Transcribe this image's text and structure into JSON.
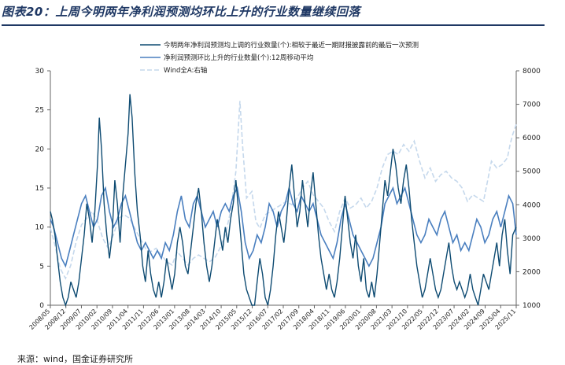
{
  "header": {
    "title": "图表20：上周今明两年净利润预测均环比上升的行业数量继续回落"
  },
  "footer": {
    "source": "来源：wind，国金证券研究所"
  },
  "colors": {
    "title": "#1f3864",
    "series_dark": "#0e4b72",
    "series_mid": "#4a7fbf",
    "series_light": "#c5d8ec"
  },
  "chart_data": {
    "type": "line",
    "title": "",
    "series": [
      {
        "name": "今明两年净利润预测均上调的行业数量(个):相较于最近一期财报披露前的最后一次预测",
        "axis": "left",
        "style": "solid-dark"
      },
      {
        "name": "净利润预测环比上升的行业数量(个):12周移动平均",
        "axis": "left",
        "style": "solid-mid"
      },
      {
        "name": "Wind全A:右轴",
        "axis": "right",
        "style": "dashed-light"
      }
    ],
    "y_left": {
      "min": 0,
      "max": 30,
      "ticks": [
        0,
        5,
        10,
        15,
        20,
        25,
        30
      ]
    },
    "y_right": {
      "min": 1000,
      "max": 8000,
      "ticks": [
        1000,
        2000,
        3000,
        4000,
        5000,
        6000,
        7000,
        8000
      ]
    },
    "x_ticks": [
      "2008/05",
      "2008/12",
      "2009/07",
      "2010/02",
      "2010/09",
      "2011/04",
      "2011/11",
      "2012/06",
      "2013/01",
      "2013/08",
      "2014/03",
      "2014/10",
      "2015/05",
      "2015/12",
      "2016/07",
      "2017/02",
      "2017/09",
      "2018/04",
      "2018/11",
      "2019/06",
      "2020/01",
      "2020/08",
      "2021/03",
      "2021/10",
      "2022/05",
      "2022/12",
      "2023/07",
      "2024/02",
      "2024/09",
      "2025/04",
      "2025/11"
    ],
    "x_range": [
      2008.33,
      2025.83
    ],
    "dark_points": [
      [
        2008.33,
        12
      ],
      [
        2008.4,
        11
      ],
      [
        2008.5,
        9
      ],
      [
        2008.6,
        6
      ],
      [
        2008.7,
        3
      ],
      [
        2008.8,
        1
      ],
      [
        2008.9,
        0
      ],
      [
        2009.0,
        1
      ],
      [
        2009.1,
        3
      ],
      [
        2009.2,
        2
      ],
      [
        2009.3,
        1
      ],
      [
        2009.4,
        3
      ],
      [
        2009.5,
        6
      ],
      [
        2009.6,
        9
      ],
      [
        2009.7,
        13
      ],
      [
        2009.8,
        11
      ],
      [
        2009.9,
        8
      ],
      [
        2010.0,
        12
      ],
      [
        2010.1,
        18
      ],
      [
        2010.17,
        24
      ],
      [
        2010.25,
        20
      ],
      [
        2010.35,
        13
      ],
      [
        2010.45,
        9
      ],
      [
        2010.55,
        6
      ],
      [
        2010.65,
        9
      ],
      [
        2010.75,
        16
      ],
      [
        2010.85,
        13
      ],
      [
        2010.95,
        8
      ],
      [
        2011.05,
        14
      ],
      [
        2011.15,
        18
      ],
      [
        2011.25,
        22
      ],
      [
        2011.32,
        27
      ],
      [
        2011.4,
        24
      ],
      [
        2011.5,
        17
      ],
      [
        2011.6,
        12
      ],
      [
        2011.7,
        9
      ],
      [
        2011.8,
        5
      ],
      [
        2011.9,
        3
      ],
      [
        2012.0,
        7
      ],
      [
        2012.1,
        4
      ],
      [
        2012.2,
        2
      ],
      [
        2012.3,
        1
      ],
      [
        2012.4,
        3
      ],
      [
        2012.5,
        1
      ],
      [
        2012.6,
        3
      ],
      [
        2012.7,
        6
      ],
      [
        2012.8,
        4
      ],
      [
        2012.9,
        2
      ],
      [
        2013.0,
        4
      ],
      [
        2013.1,
        8
      ],
      [
        2013.2,
        10
      ],
      [
        2013.3,
        8
      ],
      [
        2013.4,
        5
      ],
      [
        2013.5,
        4
      ],
      [
        2013.6,
        7
      ],
      [
        2013.7,
        10
      ],
      [
        2013.8,
        13
      ],
      [
        2013.9,
        15
      ],
      [
        2014.0,
        12
      ],
      [
        2014.1,
        8
      ],
      [
        2014.2,
        5
      ],
      [
        2014.3,
        3
      ],
      [
        2014.4,
        5
      ],
      [
        2014.5,
        8
      ],
      [
        2014.6,
        11
      ],
      [
        2014.7,
        9
      ],
      [
        2014.8,
        7
      ],
      [
        2014.9,
        10
      ],
      [
        2015.0,
        8
      ],
      [
        2015.1,
        11
      ],
      [
        2015.2,
        13
      ],
      [
        2015.3,
        16
      ],
      [
        2015.4,
        12
      ],
      [
        2015.5,
        8
      ],
      [
        2015.6,
        4
      ],
      [
        2015.7,
        2
      ],
      [
        2015.8,
        1
      ],
      [
        2015.9,
        0
      ],
      [
        2016.0,
        0
      ],
      [
        2016.1,
        3
      ],
      [
        2016.2,
        6
      ],
      [
        2016.3,
        4
      ],
      [
        2016.4,
        1
      ],
      [
        2016.5,
        0
      ],
      [
        2016.6,
        2
      ],
      [
        2016.7,
        5
      ],
      [
        2016.8,
        9
      ],
      [
        2016.9,
        12
      ],
      [
        2017.0,
        10
      ],
      [
        2017.1,
        8
      ],
      [
        2017.2,
        11
      ],
      [
        2017.3,
        15
      ],
      [
        2017.4,
        18
      ],
      [
        2017.5,
        14
      ],
      [
        2017.6,
        10
      ],
      [
        2017.7,
        12
      ],
      [
        2017.8,
        16
      ],
      [
        2017.9,
        13
      ],
      [
        2018.0,
        10
      ],
      [
        2018.1,
        14
      ],
      [
        2018.2,
        17
      ],
      [
        2018.3,
        13
      ],
      [
        2018.4,
        9
      ],
      [
        2018.5,
        6
      ],
      [
        2018.6,
        4
      ],
      [
        2018.7,
        2
      ],
      [
        2018.8,
        4
      ],
      [
        2018.9,
        2
      ],
      [
        2019.0,
        1
      ],
      [
        2019.1,
        3
      ],
      [
        2019.2,
        6
      ],
      [
        2019.3,
        10
      ],
      [
        2019.4,
        14
      ],
      [
        2019.5,
        11
      ],
      [
        2019.6,
        8
      ],
      [
        2019.7,
        6
      ],
      [
        2019.8,
        9
      ],
      [
        2019.9,
        5
      ],
      [
        2020.0,
        3
      ],
      [
        2020.1,
        6
      ],
      [
        2020.2,
        2
      ],
      [
        2020.3,
        1
      ],
      [
        2020.4,
        3
      ],
      [
        2020.5,
        1
      ],
      [
        2020.6,
        4
      ],
      [
        2020.7,
        8
      ],
      [
        2020.8,
        12
      ],
      [
        2020.9,
        16
      ],
      [
        2021.0,
        14
      ],
      [
        2021.1,
        17
      ],
      [
        2021.2,
        20
      ],
      [
        2021.3,
        18
      ],
      [
        2021.4,
        15
      ],
      [
        2021.5,
        13
      ],
      [
        2021.6,
        16
      ],
      [
        2021.7,
        18
      ],
      [
        2021.8,
        15
      ],
      [
        2021.9,
        11
      ],
      [
        2022.0,
        8
      ],
      [
        2022.1,
        5
      ],
      [
        2022.2,
        3
      ],
      [
        2022.3,
        1
      ],
      [
        2022.4,
        2
      ],
      [
        2022.5,
        4
      ],
      [
        2022.6,
        6
      ],
      [
        2022.7,
        4
      ],
      [
        2022.8,
        2
      ],
      [
        2022.9,
        1
      ],
      [
        2023.0,
        2
      ],
      [
        2023.1,
        4
      ],
      [
        2023.2,
        6
      ],
      [
        2023.3,
        8
      ],
      [
        2023.4,
        5
      ],
      [
        2023.5,
        3
      ],
      [
        2023.6,
        2
      ],
      [
        2023.7,
        3
      ],
      [
        2023.8,
        2
      ],
      [
        2023.9,
        1
      ],
      [
        2024.0,
        2
      ],
      [
        2024.1,
        4
      ],
      [
        2024.2,
        2
      ],
      [
        2024.3,
        1
      ],
      [
        2024.4,
        0
      ],
      [
        2024.5,
        2
      ],
      [
        2024.6,
        4
      ],
      [
        2024.7,
        3
      ],
      [
        2024.8,
        2
      ],
      [
        2024.9,
        4
      ],
      [
        2025.0,
        6
      ],
      [
        2025.1,
        8
      ],
      [
        2025.2,
        5
      ],
      [
        2025.3,
        9
      ],
      [
        2025.4,
        11
      ],
      [
        2025.5,
        7
      ],
      [
        2025.6,
        4
      ],
      [
        2025.7,
        9
      ],
      [
        2025.83,
        10
      ]
    ],
    "mid_points": [
      [
        2008.33,
        11
      ],
      [
        2008.45,
        10
      ],
      [
        2008.6,
        8
      ],
      [
        2008.75,
        6
      ],
      [
        2008.9,
        5
      ],
      [
        2009.05,
        7
      ],
      [
        2009.2,
        9
      ],
      [
        2009.35,
        11
      ],
      [
        2009.5,
        13
      ],
      [
        2009.65,
        14
      ],
      [
        2009.8,
        12
      ],
      [
        2009.95,
        10
      ],
      [
        2010.1,
        11
      ],
      [
        2010.25,
        14
      ],
      [
        2010.4,
        15
      ],
      [
        2010.55,
        12
      ],
      [
        2010.7,
        10
      ],
      [
        2010.85,
        11
      ],
      [
        2011.0,
        13
      ],
      [
        2011.15,
        14
      ],
      [
        2011.3,
        12
      ],
      [
        2011.45,
        10
      ],
      [
        2011.6,
        8
      ],
      [
        2011.75,
        7
      ],
      [
        2011.9,
        8
      ],
      [
        2012.05,
        7
      ],
      [
        2012.2,
        6
      ],
      [
        2012.35,
        7
      ],
      [
        2012.5,
        6
      ],
      [
        2012.65,
        8
      ],
      [
        2012.8,
        7
      ],
      [
        2012.95,
        9
      ],
      [
        2013.1,
        12
      ],
      [
        2013.25,
        14
      ],
      [
        2013.4,
        11
      ],
      [
        2013.55,
        10
      ],
      [
        2013.7,
        13
      ],
      [
        2013.85,
        14
      ],
      [
        2014.0,
        12
      ],
      [
        2014.15,
        10
      ],
      [
        2014.3,
        11
      ],
      [
        2014.45,
        12
      ],
      [
        2014.6,
        10
      ],
      [
        2014.75,
        12
      ],
      [
        2014.9,
        13
      ],
      [
        2015.05,
        12
      ],
      [
        2015.2,
        14
      ],
      [
        2015.35,
        15
      ],
      [
        2015.5,
        12
      ],
      [
        2015.65,
        8
      ],
      [
        2015.8,
        6
      ],
      [
        2015.95,
        7
      ],
      [
        2016.1,
        9
      ],
      [
        2016.25,
        8
      ],
      [
        2016.4,
        10
      ],
      [
        2016.55,
        13
      ],
      [
        2016.7,
        12
      ],
      [
        2016.85,
        10
      ],
      [
        2017.0,
        12
      ],
      [
        2017.15,
        13
      ],
      [
        2017.3,
        15
      ],
      [
        2017.45,
        13
      ],
      [
        2017.6,
        12
      ],
      [
        2017.75,
        14
      ],
      [
        2017.9,
        13
      ],
      [
        2018.05,
        12
      ],
      [
        2018.2,
        13
      ],
      [
        2018.35,
        11
      ],
      [
        2018.5,
        9
      ],
      [
        2018.65,
        8
      ],
      [
        2018.8,
        7
      ],
      [
        2018.95,
        6
      ],
      [
        2019.1,
        8
      ],
      [
        2019.25,
        11
      ],
      [
        2019.4,
        13
      ],
      [
        2019.55,
        11
      ],
      [
        2019.7,
        9
      ],
      [
        2019.85,
        8
      ],
      [
        2020.0,
        7
      ],
      [
        2020.15,
        6
      ],
      [
        2020.3,
        5
      ],
      [
        2020.45,
        6
      ],
      [
        2020.6,
        8
      ],
      [
        2020.75,
        10
      ],
      [
        2020.9,
        13
      ],
      [
        2021.05,
        14
      ],
      [
        2021.2,
        15
      ],
      [
        2021.35,
        13
      ],
      [
        2021.5,
        14
      ],
      [
        2021.65,
        15
      ],
      [
        2021.8,
        13
      ],
      [
        2021.95,
        11
      ],
      [
        2022.1,
        9
      ],
      [
        2022.25,
        8
      ],
      [
        2022.4,
        9
      ],
      [
        2022.55,
        11
      ],
      [
        2022.7,
        10
      ],
      [
        2022.85,
        9
      ],
      [
        2023.0,
        11
      ],
      [
        2023.15,
        12
      ],
      [
        2023.3,
        10
      ],
      [
        2023.45,
        8
      ],
      [
        2023.6,
        9
      ],
      [
        2023.75,
        7
      ],
      [
        2023.9,
        8
      ],
      [
        2024.05,
        7
      ],
      [
        2024.2,
        9
      ],
      [
        2024.35,
        11
      ],
      [
        2024.5,
        10
      ],
      [
        2024.65,
        8
      ],
      [
        2024.8,
        9
      ],
      [
        2024.95,
        11
      ],
      [
        2025.1,
        12
      ],
      [
        2025.25,
        10
      ],
      [
        2025.4,
        12
      ],
      [
        2025.55,
        14
      ],
      [
        2025.7,
        13
      ],
      [
        2025.83,
        9
      ]
    ],
    "light_points": [
      [
        2008.33,
        3300
      ],
      [
        2008.5,
        2800
      ],
      [
        2008.7,
        2100
      ],
      [
        2008.9,
        1800
      ],
      [
        2009.1,
        2200
      ],
      [
        2009.3,
        2900
      ],
      [
        2009.5,
        3400
      ],
      [
        2009.7,
        3600
      ],
      [
        2009.9,
        3800
      ],
      [
        2010.1,
        3500
      ],
      [
        2010.3,
        3000
      ],
      [
        2010.5,
        2700
      ],
      [
        2010.7,
        3100
      ],
      [
        2010.9,
        3600
      ],
      [
        2011.1,
        3700
      ],
      [
        2011.3,
        3600
      ],
      [
        2011.5,
        3300
      ],
      [
        2011.7,
        3000
      ],
      [
        2011.9,
        2700
      ],
      [
        2012.1,
        2600
      ],
      [
        2012.3,
        2700
      ],
      [
        2012.5,
        2500
      ],
      [
        2012.7,
        2300
      ],
      [
        2012.9,
        2200
      ],
      [
        2013.1,
        2600
      ],
      [
        2013.3,
        2400
      ],
      [
        2013.5,
        2200
      ],
      [
        2013.7,
        2400
      ],
      [
        2013.9,
        2500
      ],
      [
        2014.1,
        2400
      ],
      [
        2014.3,
        2300
      ],
      [
        2014.5,
        2400
      ],
      [
        2014.7,
        2700
      ],
      [
        2014.9,
        3100
      ],
      [
        2015.1,
        3800
      ],
      [
        2015.3,
        5000
      ],
      [
        2015.45,
        7100
      ],
      [
        2015.55,
        5800
      ],
      [
        2015.7,
        4200
      ],
      [
        2015.9,
        4400
      ],
      [
        2016.05,
        3500
      ],
      [
        2016.2,
        3300
      ],
      [
        2016.4,
        3700
      ],
      [
        2016.6,
        3800
      ],
      [
        2016.8,
        3900
      ],
      [
        2017.0,
        4000
      ],
      [
        2017.2,
        4100
      ],
      [
        2017.4,
        4000
      ],
      [
        2017.6,
        4200
      ],
      [
        2017.8,
        4500
      ],
      [
        2018.0,
        4700
      ],
      [
        2018.2,
        4300
      ],
      [
        2018.4,
        4100
      ],
      [
        2018.6,
        3900
      ],
      [
        2018.8,
        3500
      ],
      [
        2019.0,
        3200
      ],
      [
        2019.2,
        3800
      ],
      [
        2019.4,
        4200
      ],
      [
        2019.6,
        3900
      ],
      [
        2019.8,
        4000
      ],
      [
        2020.0,
        4200
      ],
      [
        2020.2,
        3900
      ],
      [
        2020.4,
        4100
      ],
      [
        2020.6,
        4500
      ],
      [
        2020.8,
        5100
      ],
      [
        2021.0,
        5500
      ],
      [
        2021.2,
        5600
      ],
      [
        2021.4,
        5500
      ],
      [
        2021.6,
        5800
      ],
      [
        2021.8,
        5600
      ],
      [
        2022.0,
        5900
      ],
      [
        2022.2,
        5300
      ],
      [
        2022.4,
        4800
      ],
      [
        2022.6,
        5100
      ],
      [
        2022.8,
        4700
      ],
      [
        2023.0,
        4900
      ],
      [
        2023.2,
        5000
      ],
      [
        2023.4,
        4800
      ],
      [
        2023.6,
        4700
      ],
      [
        2023.8,
        4500
      ],
      [
        2024.0,
        4100
      ],
      [
        2024.2,
        4300
      ],
      [
        2024.4,
        4200
      ],
      [
        2024.6,
        4100
      ],
      [
        2024.75,
        4700
      ],
      [
        2024.9,
        5300
      ],
      [
        2025.1,
        5100
      ],
      [
        2025.3,
        5200
      ],
      [
        2025.5,
        5400
      ],
      [
        2025.6,
        5800
      ],
      [
        2025.7,
        6100
      ],
      [
        2025.83,
        6400
      ]
    ]
  }
}
